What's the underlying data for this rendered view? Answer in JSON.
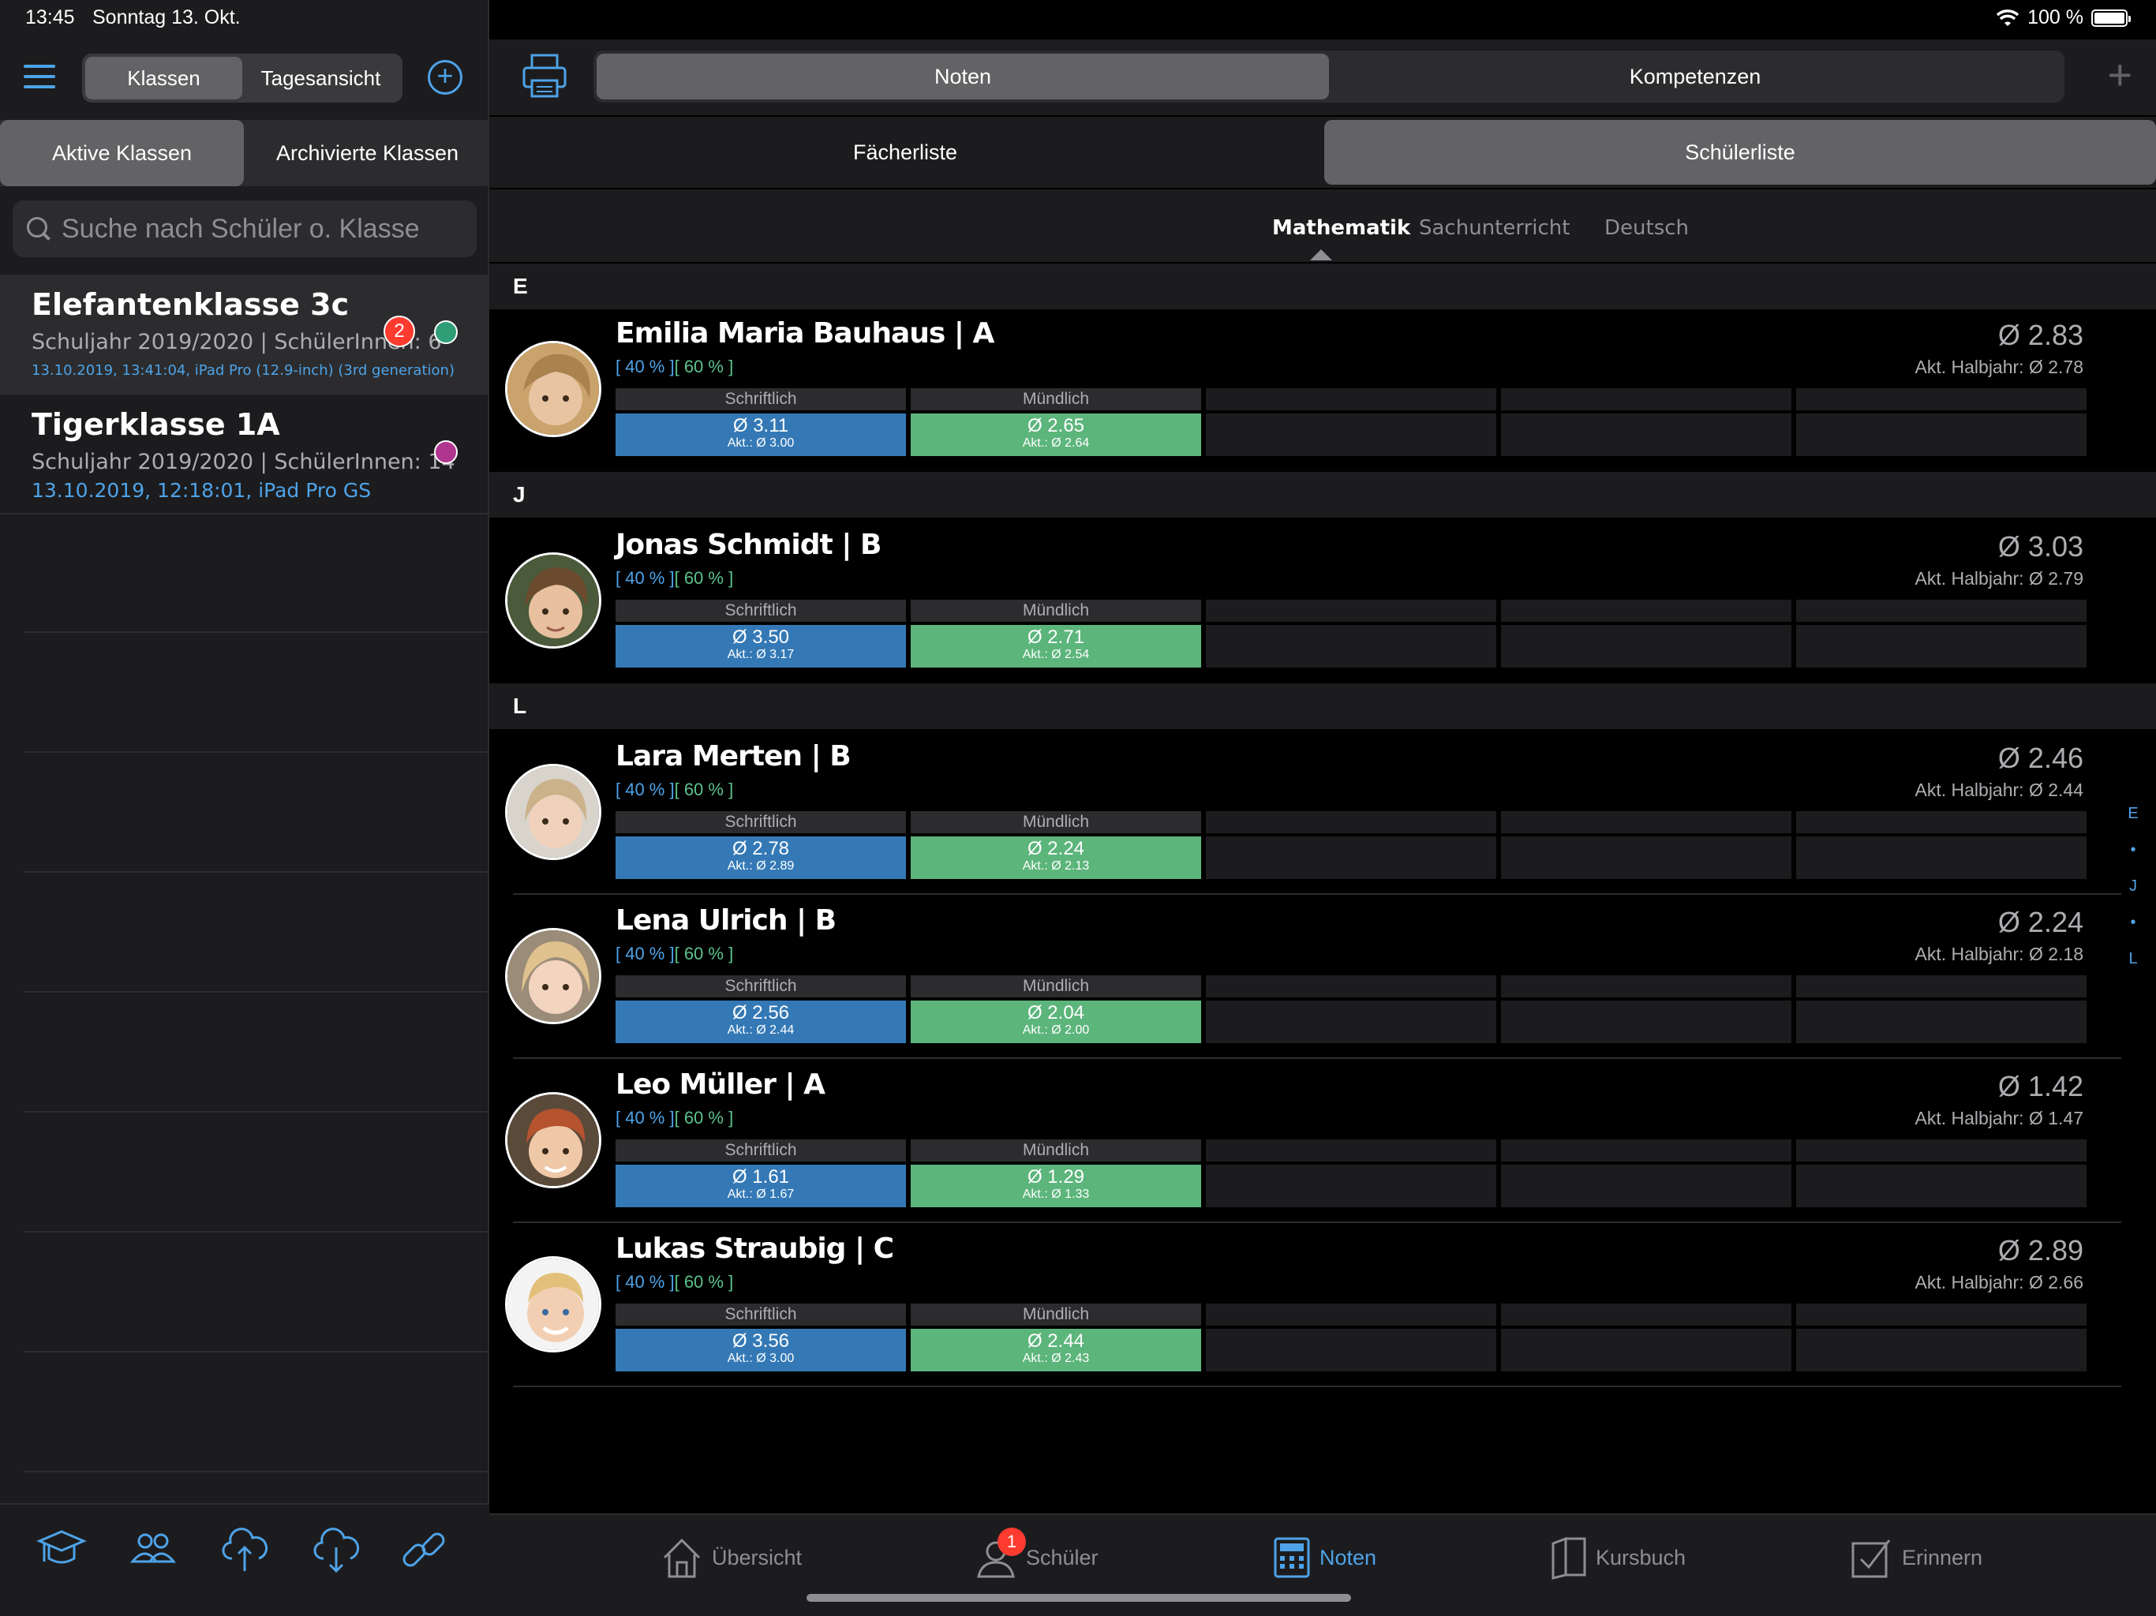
{
  "status": {
    "time": "13:45",
    "date": "Sonntag 13. Okt.",
    "battery": "100 %"
  },
  "sidebar": {
    "tabs": [
      "Klassen",
      "Tagesansicht"
    ],
    "archive_tabs": [
      "Aktive Klassen",
      "Archivierte Klassen"
    ],
    "search_placeholder": "Suche nach Schüler o. Klasse",
    "classes": [
      {
        "name": "Elefantenklasse 3c",
        "meta": "Schuljahr 2019/2020 | SchülerInnen: 6",
        "device": "13.10.2019, 13:41:04, iPad Pro (12.9-inch) (3rd generation)",
        "badge": "2",
        "dot_color": "#2f9e76"
      },
      {
        "name": "Tigerklasse 1A",
        "meta": "Schuljahr 2019/2020 | SchülerInnen: 14",
        "device": "13.10.2019, 12:18:01, iPad Pro GS",
        "dot_color": "#b0358f"
      }
    ]
  },
  "main": {
    "tabs": [
      "Noten",
      "Kompetenzen"
    ],
    "list_tabs": [
      "Fächerliste",
      "Schülerliste"
    ],
    "subjects": [
      "Mathematik",
      "Sachunterricht",
      "Deutsch"
    ],
    "sections": [
      "E",
      "J",
      "L"
    ],
    "weights": {
      "w1": "[ 40 % ]",
      "w2": "[ 60 % ]"
    },
    "col_labels": {
      "schriftlich": "Schriftlich",
      "muendlich": "Mündlich"
    },
    "students": [
      {
        "name": "Emilia Maria Bauhaus | A",
        "avg": "Ø 2.83",
        "halbjahr": "Akt. Halbjahr: Ø 2.78",
        "s_val": "Ø 3.11",
        "s_akt": "Akt.: Ø 3.00",
        "m_val": "Ø 2.65",
        "m_akt": "Akt.: Ø 2.64"
      },
      {
        "name": "Jonas Schmidt | B",
        "avg": "Ø 3.03",
        "halbjahr": "Akt. Halbjahr: Ø 2.79",
        "s_val": "Ø 3.50",
        "s_akt": "Akt.: Ø 3.17",
        "m_val": "Ø 2.71",
        "m_akt": "Akt.: Ø 2.54"
      },
      {
        "name": "Lara Merten | B",
        "avg": "Ø 2.46",
        "halbjahr": "Akt. Halbjahr: Ø 2.44",
        "s_val": "Ø 2.78",
        "s_akt": "Akt.: Ø 2.89",
        "m_val": "Ø 2.24",
        "m_akt": "Akt.: Ø 2.13"
      },
      {
        "name": "Lena Ulrich | B",
        "avg": "Ø 2.24",
        "halbjahr": "Akt. Halbjahr: Ø 2.18",
        "s_val": "Ø 2.56",
        "s_akt": "Akt.: Ø 2.44",
        "m_val": "Ø 2.04",
        "m_akt": "Akt.: Ø 2.00"
      },
      {
        "name": "Leo Müller | A",
        "avg": "Ø 1.42",
        "halbjahr": "Akt. Halbjahr: Ø 1.47",
        "s_val": "Ø 1.61",
        "s_akt": "Akt.: Ø 1.67",
        "m_val": "Ø 1.29",
        "m_akt": "Akt.: Ø 1.33"
      },
      {
        "name": "Lukas Straubig | C",
        "avg": "Ø 2.89",
        "halbjahr": "Akt. Halbjahr: Ø 2.66",
        "s_val": "Ø 3.56",
        "s_akt": "Akt.: Ø 3.00",
        "m_val": "Ø 2.44",
        "m_akt": "Akt.: Ø 2.43"
      }
    ],
    "index": [
      "E",
      "•",
      "J",
      "•",
      "L"
    ]
  },
  "tabbar": {
    "items": [
      "Übersicht",
      "Schüler",
      "Noten",
      "Kursbuch",
      "Erinnern"
    ],
    "schueler_badge": "1"
  },
  "colors": {
    "accent": "#4ea3e8",
    "schriftlich": "#3479b6",
    "muendlich": "#5cb57b"
  }
}
